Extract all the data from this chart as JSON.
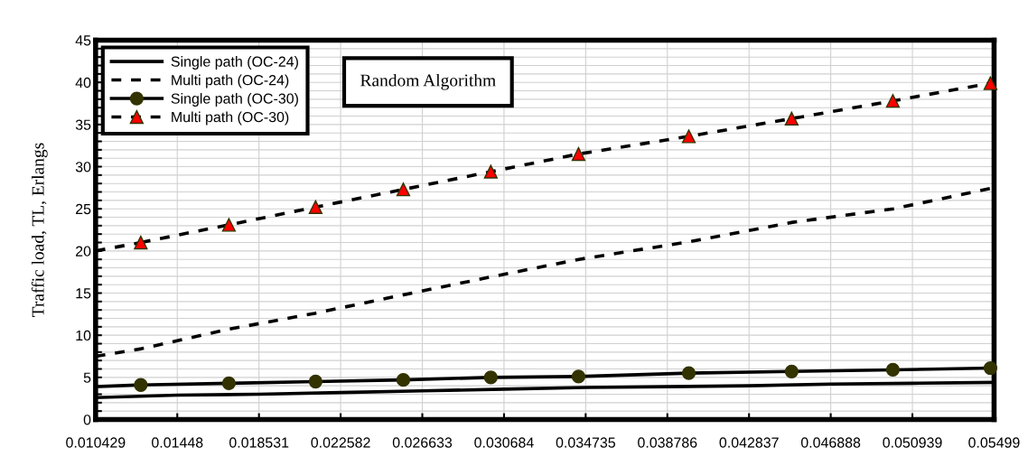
{
  "chart_data": {
    "type": "line",
    "ylabel": "Traffic load, TL, Erlangs",
    "annotations": [
      "Random Algorithm"
    ],
    "xlim": [
      0.010429,
      0.05499
    ],
    "xticks": [
      0.010429,
      0.01448,
      0.018531,
      0.022582,
      0.026633,
      0.030684,
      0.034735,
      0.038786,
      0.042837,
      0.046888,
      0.050939,
      0.05499
    ],
    "ylim": [
      0,
      45
    ],
    "yticks": [
      0,
      {
        "value": 1,
        "label": null
      },
      {
        "value": 2,
        "label": null
      },
      {
        "value": 3,
        "label": null
      },
      {
        "value": 4,
        "label": null
      },
      5,
      {
        "value": 6,
        "label": null
      },
      {
        "value": 7,
        "label": null
      },
      {
        "value": 8,
        "label": null
      },
      {
        "value": 9,
        "label": null
      },
      10,
      {
        "value": 11,
        "label": null
      },
      {
        "value": 12,
        "label": null
      },
      {
        "value": 13,
        "label": null
      },
      {
        "value": 14,
        "label": null
      },
      15,
      {
        "value": 16,
        "label": null
      },
      {
        "value": 17,
        "label": null
      },
      {
        "value": 18,
        "label": null
      },
      {
        "value": 19,
        "label": null
      },
      20,
      {
        "value": 21,
        "label": null
      },
      {
        "value": 22,
        "label": null
      },
      {
        "value": 23,
        "label": null
      },
      {
        "value": 24,
        "label": null
      },
      25,
      {
        "value": 26,
        "label": null
      },
      {
        "value": 27,
        "label": null
      },
      {
        "value": 28,
        "label": null
      },
      {
        "value": 29,
        "label": null
      },
      30,
      {
        "value": 31,
        "label": null
      },
      {
        "value": 32,
        "label": null
      },
      {
        "value": 33,
        "label": null
      },
      {
        "value": 34,
        "label": null
      },
      35,
      {
        "value": 36,
        "label": null
      },
      {
        "value": 37,
        "label": null
      },
      {
        "value": 38,
        "label": null
      },
      {
        "value": 39,
        "label": null
      },
      40,
      {
        "value": 41,
        "label": null
      },
      {
        "value": 42,
        "label": null
      },
      {
        "value": 43,
        "label": null
      },
      {
        "value": 44,
        "label": null
      },
      45
    ],
    "grid": true,
    "legend": "top left",
    "series": [
      {
        "name": "Single path (OC-24)",
        "color": "#000000",
        "line_style": "solid",
        "marker": "none",
        "x": [
          0.010429,
          0.01448,
          0.018531,
          0.022582,
          0.026633,
          0.030684,
          0.034735,
          0.038786,
          0.042837,
          0.046888,
          0.050939,
          0.05499
        ],
        "values": [
          2.6,
          2.9,
          3.0,
          3.2,
          3.4,
          3.6,
          3.8,
          3.9,
          4.0,
          4.2,
          4.3,
          4.4
        ]
      },
      {
        "name": "Multi path (OC-24)",
        "color": "#000000",
        "line_style": "dashed",
        "marker": "none",
        "x": [
          0.010429,
          0.0127,
          0.017,
          0.0213,
          0.0257,
          0.03,
          0.0344,
          0.0399,
          0.045,
          0.05,
          0.05499
        ],
        "values": [
          7.5,
          8.4,
          10.7,
          12.6,
          14.8,
          16.9,
          19.0,
          21.1,
          23.4,
          25.0,
          27.5
        ]
      },
      {
        "color": "#000000",
        "line_style": "solid",
        "marker": "none",
        "x": [
          0.010429,
          0.01267
        ],
        "values": [
          3.9,
          4.1
        ]
      },
      {
        "name": "Single path (OC-30)",
        "color": "#333300",
        "line_style": "solid",
        "marker": "circle",
        "x": [
          0.01267,
          0.01704,
          0.02134,
          0.02569,
          0.03003,
          0.03438,
          0.03985,
          0.04495,
          0.04997,
          0.05481
        ],
        "values": [
          4.1,
          4.3,
          4.5,
          4.7,
          5.0,
          5.1,
          5.5,
          5.7,
          5.9,
          6.1
        ]
      },
      {
        "color": "#000000",
        "line_style": "dashed",
        "marker": "none",
        "x": [
          0.010429,
          0.01267
        ],
        "values": [
          20.0,
          21.0
        ]
      },
      {
        "name": "Multi path (OC-30)",
        "color": "#ff0000",
        "line_style": "dashed",
        "marker": "triangle",
        "x": [
          0.01267,
          0.01704,
          0.02134,
          0.02569,
          0.03003,
          0.03438,
          0.03985,
          0.04495,
          0.04997,
          0.05481
        ],
        "values": [
          21.0,
          23.1,
          25.2,
          27.3,
          29.4,
          31.5,
          33.6,
          35.7,
          37.8,
          39.9
        ]
      }
    ]
  }
}
